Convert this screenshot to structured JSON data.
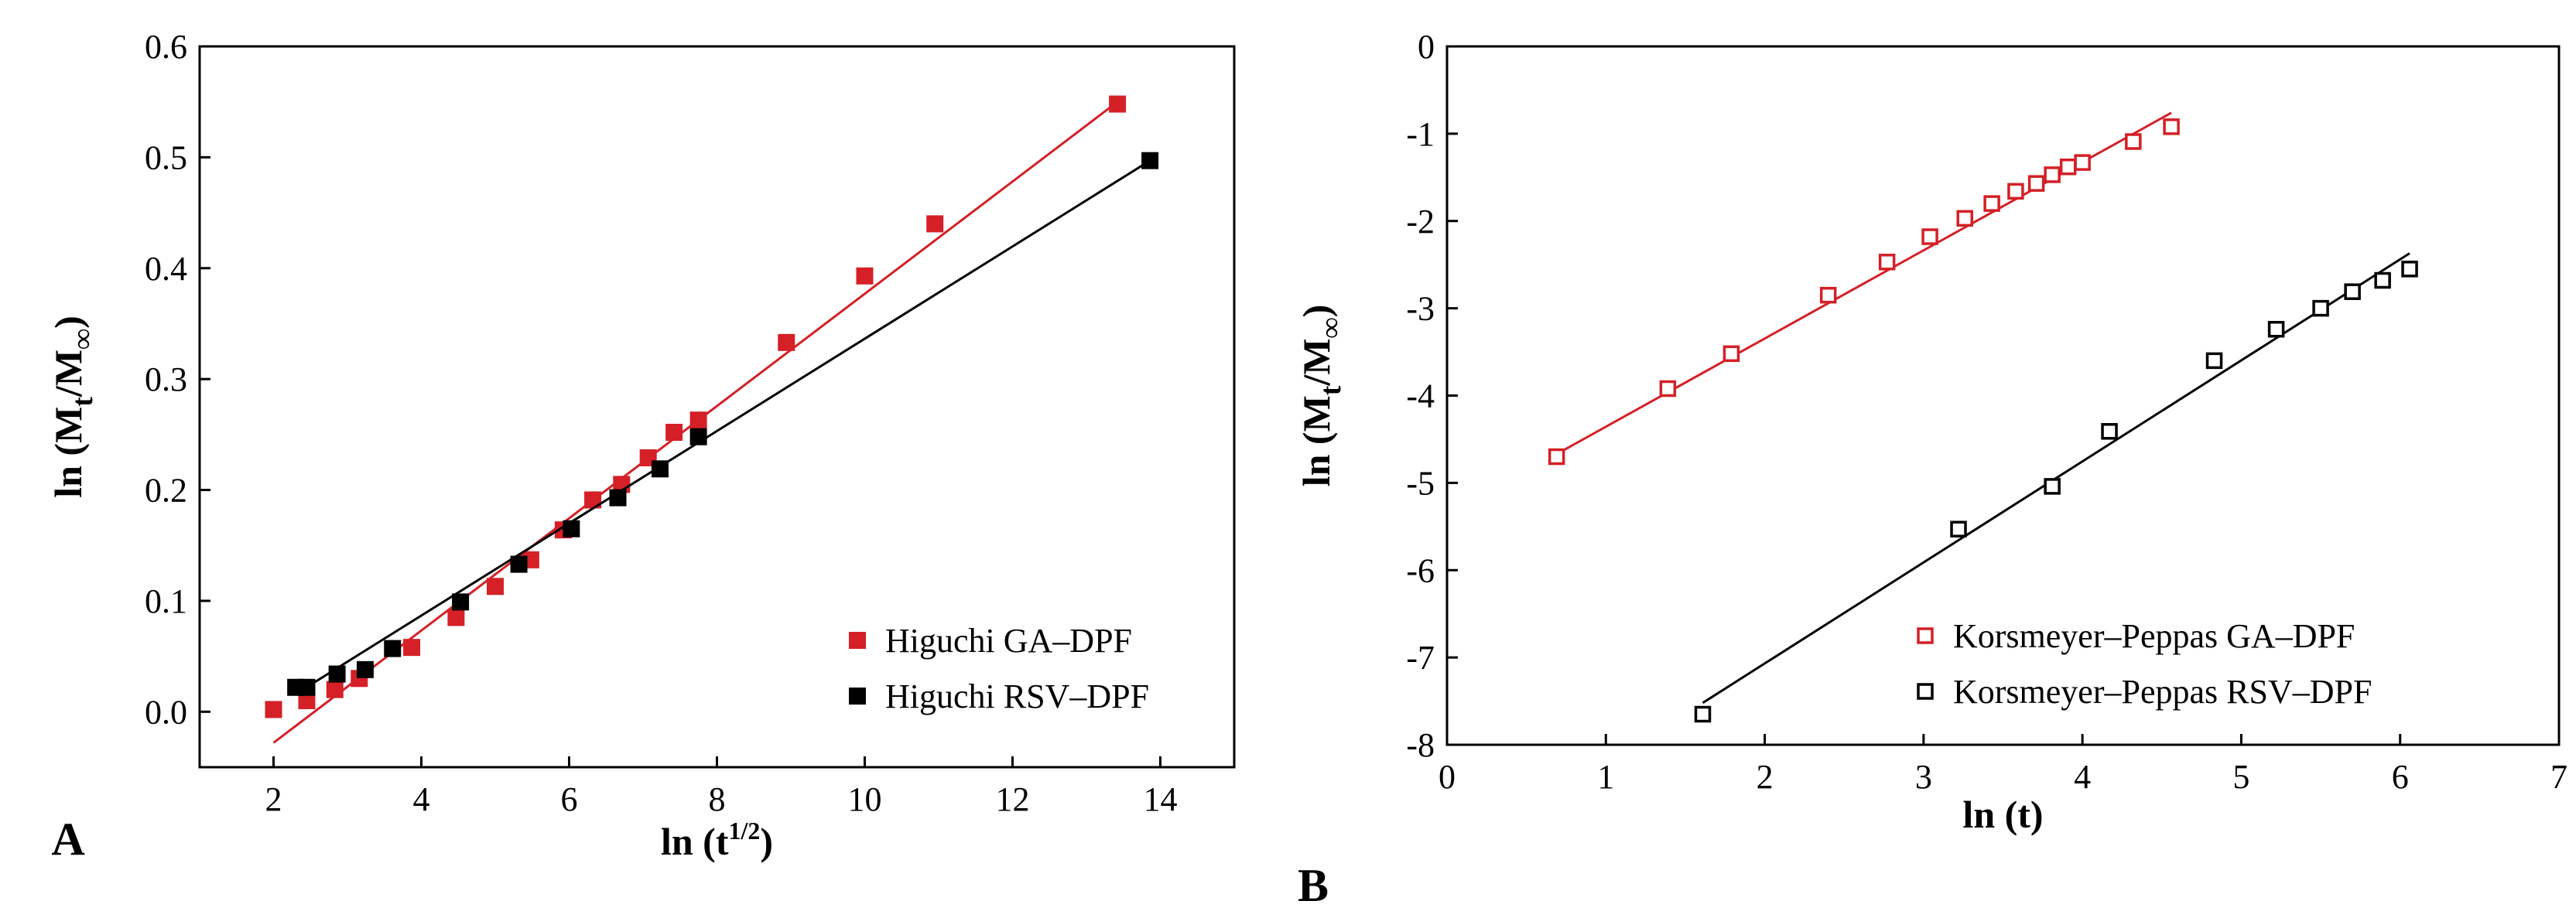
{
  "chart_data": [
    {
      "type": "scatter",
      "panel": "A",
      "xlabel": "ln (t",
      "xlabel_sup": "1/2",
      "xlabel_end": ")",
      "ylabel_parts": [
        "ln (M",
        "t",
        "/M",
        "∞",
        ")"
      ],
      "xlim": [
        1,
        15
      ],
      "ylim": [
        -0.05,
        0.6
      ],
      "x_ticks": [
        2,
        4,
        6,
        8,
        10,
        12,
        14
      ],
      "x_tick_labels": [
        "2",
        "4",
        "6",
        "8",
        "10",
        "12",
        "14"
      ],
      "y_ticks": [
        0.0,
        0.1,
        0.2,
        0.3,
        0.4,
        0.5,
        0.6
      ],
      "y_tick_labels": [
        "0.0",
        "0.1",
        "0.2",
        "0.3",
        "0.4",
        "0.5",
        "0.6"
      ],
      "legend_position": "bottom-right",
      "series": [
        {
          "name": "Higuchi GA–DPF",
          "color": "#d42026",
          "marker": "filled-square",
          "x": [
            2.0,
            2.45,
            2.83,
            3.16,
            3.87,
            4.47,
            5.0,
            5.48,
            5.92,
            6.32,
            6.71,
            7.07,
            7.42,
            7.75,
            8.94,
            10.0,
            10.95,
            13.42
          ],
          "y": [
            0.002,
            0.01,
            0.02,
            0.03,
            0.058,
            0.085,
            0.113,
            0.137,
            0.164,
            0.191,
            0.205,
            0.229,
            0.252,
            0.263,
            0.333,
            0.393,
            0.44,
            0.548
          ],
          "fit": {
            "x": [
              2.0,
              13.42
            ],
            "y": [
              -0.028,
              0.55
            ]
          }
        },
        {
          "name": "Higuchi RSV–DPF",
          "color": "#000000",
          "marker": "filled-square",
          "x": [
            2.3,
            2.45,
            2.86,
            3.24,
            3.61,
            4.53,
            5.32,
            6.03,
            6.66,
            7.23,
            7.75,
            13.86
          ],
          "y": [
            0.022,
            0.022,
            0.034,
            0.038,
            0.057,
            0.099,
            0.133,
            0.165,
            0.193,
            0.219,
            0.248,
            0.497
          ],
          "fit": {
            "x": [
              2.3,
              13.86
            ],
            "y": [
              0.016,
              0.497
            ]
          }
        }
      ]
    },
    {
      "type": "scatter",
      "panel": "B",
      "xlabel": "ln (t)",
      "ylabel_parts": [
        "ln (M",
        "t",
        "/M",
        "∞",
        ")"
      ],
      "xlim": [
        0,
        7
      ],
      "ylim": [
        -8,
        0
      ],
      "x_ticks": [
        0,
        1,
        2,
        3,
        4,
        5,
        6,
        7
      ],
      "x_tick_labels": [
        "0",
        "1",
        "2",
        "3",
        "4",
        "5",
        "6",
        "7"
      ],
      "y_ticks": [
        0,
        -1,
        -2,
        -3,
        -4,
        -5,
        -6,
        -7,
        -8
      ],
      "y_tick_labels": [
        "0",
        "-1",
        "-2",
        "-3",
        "-4",
        "-5",
        "-6",
        "-7",
        "-8"
      ],
      "legend_position": "bottom-right",
      "series": [
        {
          "name": "Korsmeyer–Peppas GA–DPF",
          "color": "#d42026",
          "marker": "open-square",
          "x": [
            0.69,
            1.39,
            1.79,
            2.4,
            2.77,
            3.04,
            3.26,
            3.43,
            3.58,
            3.71,
            3.81,
            3.91,
            4.0,
            4.32,
            4.56
          ],
          "y": [
            -4.7,
            -3.92,
            -3.52,
            -2.85,
            -2.47,
            -2.18,
            -1.97,
            -1.8,
            -1.66,
            -1.57,
            -1.47,
            -1.38,
            -1.33,
            -1.09,
            -0.92
          ],
          "fit": {
            "x": [
              0.69,
              4.56
            ],
            "y": [
              -4.67,
              -0.76
            ]
          }
        },
        {
          "name": "Korsmeyer–Peppas RSV–DPF",
          "color": "#000000",
          "marker": "open-square",
          "x": [
            1.61,
            3.22,
            3.81,
            4.17,
            4.83,
            5.22,
            5.5,
            5.7,
            5.89,
            6.06
          ],
          "y": [
            -7.65,
            -5.53,
            -5.04,
            -4.41,
            -3.6,
            -3.24,
            -3.0,
            -2.81,
            -2.68,
            -2.55
          ],
          "fit": {
            "x": [
              1.61,
              6.06
            ],
            "y": [
              -7.52,
              -2.37
            ]
          }
        }
      ]
    }
  ]
}
